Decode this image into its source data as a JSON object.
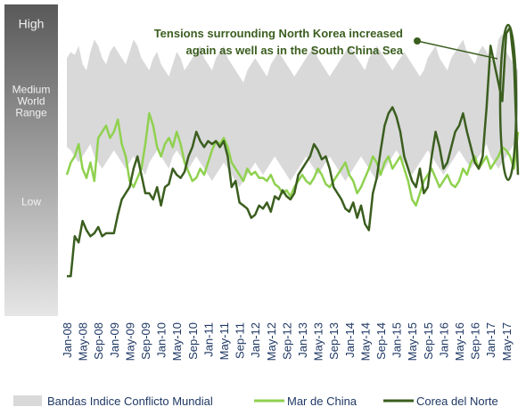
{
  "chart_data": {
    "type": "line",
    "annotation": [
      "Tensions surrounding North Korea increased",
      "again as well as in the South China Sea"
    ],
    "categories": [
      "Jan-08",
      null,
      null,
      null,
      "May-08",
      null,
      null,
      null,
      "Sep-08",
      null,
      null,
      null,
      "Jan-09",
      null,
      null,
      null,
      "May-09",
      null,
      null,
      null,
      "Sep-09",
      null,
      null,
      null,
      "Jan-10",
      null,
      null,
      null,
      "May-10",
      null,
      null,
      null,
      "Sep-10",
      null,
      null,
      null,
      "Jan-11",
      null,
      null,
      null,
      "May-11",
      null,
      null,
      null,
      "Sep-11",
      null,
      null,
      null,
      "Jan-12",
      null,
      null,
      null,
      "May-12",
      null,
      null,
      null,
      "Sep-12",
      null,
      null,
      null,
      "Jan-13",
      null,
      null,
      null,
      "May-13",
      null,
      null,
      null,
      "Sep-13",
      null,
      null,
      null,
      "Jan-14",
      null,
      null,
      null,
      "May-14",
      null,
      null,
      null,
      "Sep-14",
      null,
      null,
      null,
      "Jan-15",
      null,
      null,
      null,
      "May-15",
      null,
      null,
      null,
      "Sep-15",
      null,
      null,
      null,
      "Jan-16",
      null,
      null,
      null,
      "May-16",
      null,
      null,
      null,
      "Sep-16",
      null,
      null,
      null,
      "Jan-17",
      null,
      null,
      null,
      "May-17",
      null,
      null,
      null
    ],
    "ylim": [
      0,
      100
    ],
    "yticks": [
      {
        "value": 95,
        "label": "High"
      },
      {
        "value": 70,
        "label": "Medium World Range"
      },
      {
        "value": 37,
        "label": "Low"
      }
    ],
    "series": [
      {
        "name": "Bandas Indice Conflicto Mundial",
        "color": "#d9d9d9",
        "low": [
          55,
          54,
          52,
          50,
          52,
          54,
          56,
          52,
          50,
          48,
          50,
          52,
          54,
          52,
          50,
          48,
          50,
          52,
          50,
          48,
          46,
          50,
          52,
          54,
          52,
          50,
          48,
          52,
          54,
          52,
          50,
          48,
          50,
          52,
          50,
          48,
          46,
          44,
          46,
          48,
          50,
          48,
          46,
          44,
          42,
          44,
          46,
          48,
          50,
          48,
          46,
          48,
          50,
          52,
          50,
          48,
          46,
          44,
          46,
          48,
          50,
          52,
          50,
          48,
          46,
          48,
          50,
          52,
          50,
          48,
          46,
          44,
          46,
          48,
          50,
          52,
          50,
          48,
          46,
          44,
          46,
          48,
          50,
          52,
          54,
          52,
          50,
          48,
          46,
          48,
          50,
          52,
          54,
          52,
          50,
          48,
          46,
          48,
          50,
          52,
          54,
          52,
          50,
          48,
          50,
          52,
          54,
          56,
          52,
          50,
          48,
          50,
          52,
          54,
          56,
          54
        ],
        "high": [
          84,
          86,
          85,
          88,
          82,
          80,
          86,
          90,
          88,
          84,
          82,
          86,
          88,
          86,
          84,
          82,
          86,
          90,
          88,
          84,
          82,
          80,
          84,
          86,
          82,
          80,
          78,
          82,
          86,
          84,
          80,
          82,
          84,
          86,
          88,
          84,
          82,
          80,
          84,
          86,
          88,
          84,
          82,
          80,
          78,
          76,
          80,
          82,
          84,
          82,
          80,
          78,
          82,
          84,
          86,
          84,
          82,
          80,
          78,
          80,
          82,
          84,
          86,
          88,
          84,
          82,
          80,
          78,
          80,
          82,
          84,
          86,
          88,
          86,
          84,
          82,
          80,
          84,
          86,
          88,
          86,
          84,
          82,
          80,
          82,
          84,
          86,
          84,
          82,
          80,
          78,
          80,
          84,
          86,
          88,
          84,
          82,
          80,
          84,
          86,
          88,
          90,
          86,
          84,
          82,
          86,
          88,
          86,
          84,
          82,
          90,
          92,
          86,
          84,
          82,
          80
        ]
      },
      {
        "name": "Mar de China",
        "color": "#8fd14f",
        "values": [
          46,
          50,
          52,
          56,
          48,
          45,
          50,
          44,
          58,
          60,
          62,
          58,
          60,
          64,
          56,
          52,
          44,
          42,
          45,
          48,
          56,
          66,
          62,
          55,
          52,
          56,
          58,
          55,
          60,
          56,
          50,
          47,
          44,
          45,
          48,
          46,
          50,
          54,
          57,
          56,
          58,
          55,
          50,
          48,
          46,
          44,
          48,
          46,
          47,
          45,
          45,
          44,
          46,
          43,
          42,
          40,
          41,
          39,
          42,
          44,
          46,
          44,
          43,
          45,
          48,
          46,
          43,
          42,
          44,
          46,
          48,
          50,
          46,
          44,
          40,
          42,
          45,
          48,
          52,
          50,
          46,
          50,
          52,
          48,
          50,
          52,
          48,
          44,
          38,
          36,
          40,
          44,
          46,
          48,
          45,
          42,
          44,
          46,
          43,
          42,
          44,
          48,
          46,
          50,
          52,
          48,
          50,
          52,
          48,
          50,
          52,
          55,
          54,
          52,
          48,
          60
        ]
      },
      {
        "name": "Corea del Norte",
        "color": "#3b5e1f",
        "values": [
          13,
          13,
          26,
          24,
          31,
          28,
          26,
          27,
          29,
          26,
          27,
          27,
          27,
          33,
          38,
          40,
          42,
          48,
          52,
          46,
          40,
          40,
          38,
          42,
          36,
          42,
          43,
          48,
          46,
          45,
          47,
          52,
          55,
          60,
          57,
          55,
          57,
          56,
          57,
          55,
          57,
          52,
          42,
          44,
          37,
          36,
          35,
          32,
          33,
          36,
          35,
          37,
          34,
          39,
          38,
          41,
          39,
          38,
          40,
          46,
          48,
          50,
          52,
          56,
          54,
          51,
          52,
          48,
          42,
          40,
          38,
          35,
          34,
          37,
          32,
          36,
          30,
          28,
          40,
          45,
          54,
          62,
          66,
          68,
          65,
          60,
          52,
          48,
          44,
          42,
          48,
          40,
          42,
          52,
          60,
          55,
          48,
          50,
          55,
          60,
          62,
          66,
          60,
          55,
          50,
          48,
          52,
          68,
          88,
          82,
          76,
          70,
          92,
          94,
          82,
          46
        ]
      }
    ]
  }
}
